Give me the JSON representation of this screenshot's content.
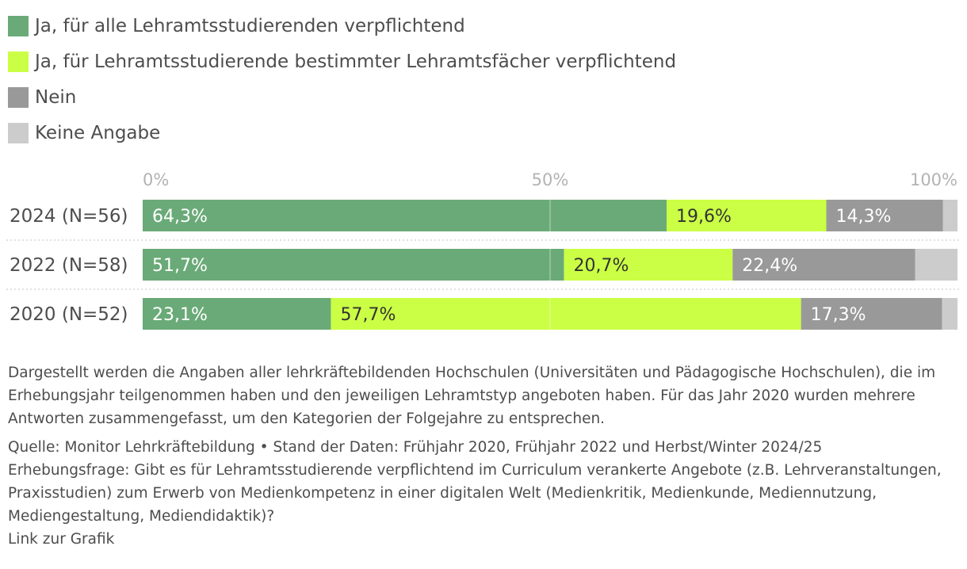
{
  "legend": [
    {
      "label": "Ja, für alle Lehramtsstudierenden verpflichtend",
      "color": "#6aaa78"
    },
    {
      "label": "Ja, für Lehramtsstudierende bestimmter Lehramtsfächer verpflichtend",
      "color": "#cbff45"
    },
    {
      "label": "Nein",
      "color": "#999999"
    },
    {
      "label": "Keine Angabe",
      "color": "#cccccc"
    }
  ],
  "chart_data": {
    "type": "bar",
    "orientation": "horizontal",
    "stacked": true,
    "categories": [
      "2024 (N=56)",
      "2022 (N=58)",
      "2020 (N=52)"
    ],
    "series": [
      {
        "name": "Ja, für alle Lehramtsstudierenden verpflichtend",
        "values": [
          64.3,
          51.7,
          23.1
        ],
        "labels": [
          "64,3%",
          "51,7%",
          "23,1%"
        ],
        "color": "#6aaa78"
      },
      {
        "name": "Ja, für Lehramtsstudierende bestimmter Lehramtsfächer verpflichtend",
        "values": [
          19.6,
          20.7,
          57.7
        ],
        "labels": [
          "19,6%",
          "20,7%",
          "57,7%"
        ],
        "color": "#cbff45"
      },
      {
        "name": "Nein",
        "values": [
          14.3,
          22.4,
          17.3
        ],
        "labels": [
          "14,3%",
          "22,4%",
          "17,3%"
        ],
        "color": "#999999"
      },
      {
        "name": "Keine Angabe",
        "values": [
          1.8,
          5.2,
          1.9
        ],
        "labels": [
          "",
          "",
          ""
        ],
        "color": "#cccccc"
      }
    ],
    "xticks": [
      "0%",
      "50%",
      "100%"
    ],
    "xtick_values": [
      0,
      50,
      100
    ],
    "xlim": [
      0,
      100
    ],
    "grid": true
  },
  "notes": {
    "description": "Dargestellt werden die Angaben aller lehrkräftebildenden Hochschulen (Universitäten und Pädagogische Hochschulen), die im Erhebungsjahr teilgenommen haben und den jeweiligen Lehramtstyp angeboten haben. Für das Jahr 2020 wurden mehrere Antworten zusammengefasst, um den Kategorien der Folgejahre zu entsprechen.",
    "source": "Quelle: Monitor Lehrkräftebildung • Stand der Daten: Frühjahr 2020, Frühjahr 2022 und Herbst/Winter 2024/25",
    "question": "Erhebungsfrage: Gibt es für Lehramtsstudierende verpflichtend im Curriculum verankerte Angebote (z.B. Lehrveranstaltungen, Praxisstudien) zum Erwerb von Medienkompetenz in einer digitalen Welt (Medienkritik, Medienkunde, Mediennutzung, Mediengestaltung, Mediendidaktik)?",
    "link": "Link zur Grafik"
  }
}
